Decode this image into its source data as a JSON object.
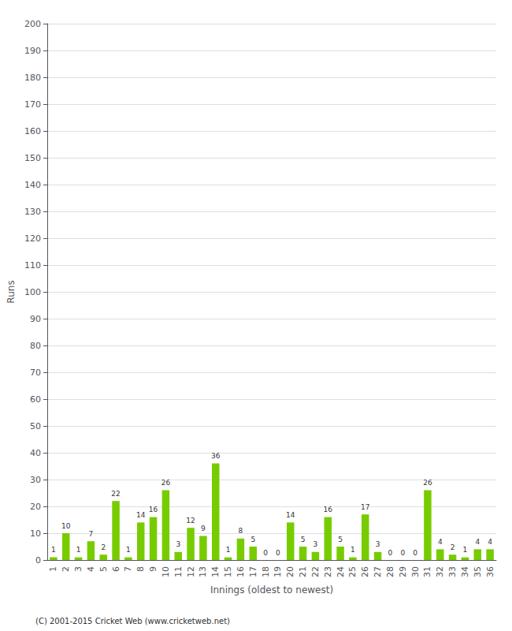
{
  "chart_data": {
    "type": "bar",
    "categories": [
      1,
      2,
      3,
      4,
      5,
      6,
      7,
      8,
      9,
      10,
      11,
      12,
      13,
      14,
      15,
      16,
      17,
      18,
      19,
      20,
      21,
      22,
      23,
      24,
      25,
      26,
      27,
      28,
      29,
      30,
      31,
      32,
      33,
      34,
      35,
      36
    ],
    "values": [
      1,
      10,
      1,
      7,
      2,
      22,
      1,
      14,
      16,
      26,
      3,
      12,
      9,
      36,
      1,
      8,
      5,
      0,
      0,
      14,
      5,
      3,
      16,
      5,
      1,
      17,
      3,
      0,
      0,
      0,
      26,
      4,
      2,
      1,
      4,
      4
    ],
    "color": "#77cc00",
    "xlabel": "Innings (oldest to newest)",
    "ylabel": "Runs",
    "ylim": [
      0,
      200
    ],
    "yticks": [
      0,
      10,
      20,
      30,
      40,
      50,
      60,
      70,
      80,
      90,
      100,
      110,
      120,
      130,
      140,
      150,
      160,
      170,
      180,
      190,
      200
    ],
    "grid": true,
    "data_labels": true,
    "footer": "(C) 2001-2015 Cricket Web (www.cricketweb.net)"
  }
}
